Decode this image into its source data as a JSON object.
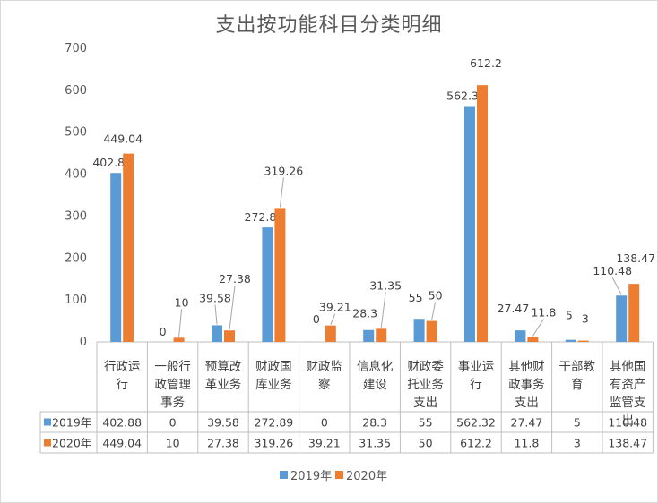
{
  "chart_data": {
    "type": "bar",
    "title": "支出按功能科目分类明细",
    "categories": [
      "行政运行",
      "一般行政管理事务",
      "预算改革业务",
      "财政国库业务",
      "财政监察",
      "信息化建设",
      "财政委托业务支出",
      "事业运行",
      "其他财政事务支出",
      "干部教育",
      "其他国有资产监管支出"
    ],
    "category_lines": [
      [
        "行政运",
        "行"
      ],
      [
        "一般行",
        "政管理",
        "事务"
      ],
      [
        "预算改",
        "革业务"
      ],
      [
        "财政国",
        "库业务"
      ],
      [
        "财政监",
        "察"
      ],
      [
        "信息化",
        "建设"
      ],
      [
        "财政委",
        "托业务",
        "支出"
      ],
      [
        "事业运",
        "行"
      ],
      [
        "其他财",
        "政事务",
        "支出"
      ],
      [
        "干部教",
        "育"
      ],
      [
        "其他国",
        "有资产",
        "监管支",
        "出"
      ]
    ],
    "series": [
      {
        "name": "2019年",
        "color": "#5b9bd5",
        "values": [
          402.88,
          0,
          39.58,
          272.89,
          0,
          28.3,
          55,
          562.32,
          27.47,
          5,
          110.48
        ]
      },
      {
        "name": "2020年",
        "color": "#ed7d31",
        "values": [
          449.04,
          10,
          27.38,
          319.26,
          39.21,
          31.35,
          50,
          612.2,
          11.8,
          3,
          138.47
        ]
      }
    ],
    "ylim": [
      0,
      700
    ],
    "yticks": [
      0,
      100,
      200,
      300,
      400,
      500,
      600,
      700
    ],
    "grid": false,
    "legend_position": "bottom",
    "data_table": true
  }
}
